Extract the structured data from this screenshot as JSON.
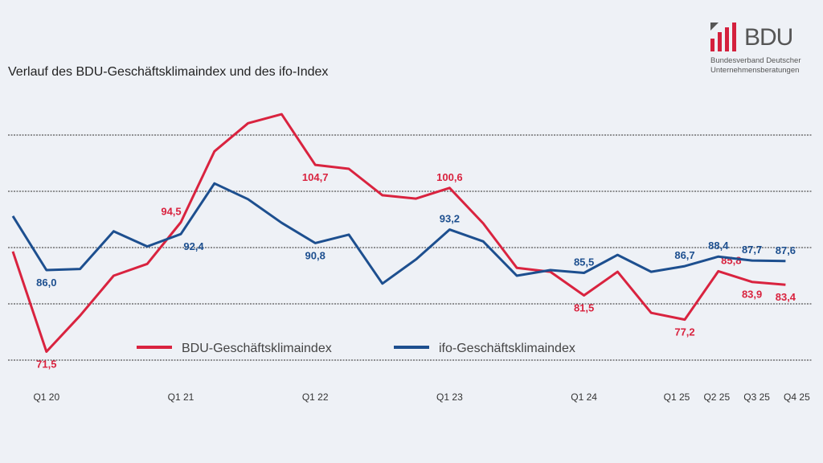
{
  "logo": {
    "text": "BDU",
    "line1": "Bundesverband Deutscher",
    "line2": "Unternehmensberatungen",
    "bar_color": "#d4203d"
  },
  "chart_data": {
    "type": "line",
    "title": "Verlauf des BDU-Geschäftsklimaindex und des ifo-Index",
    "ylim": [
      70,
      110
    ],
    "grid": true,
    "legend": "bottom-center",
    "x_ticks": [
      {
        "index": 1,
        "label": "Q1 20"
      },
      {
        "index": 5,
        "label": "Q1 21"
      },
      {
        "index": 9,
        "label": "Q1 22"
      },
      {
        "index": 13,
        "label": "Q1 23"
      },
      {
        "index": 17,
        "label": "Q1 24"
      },
      {
        "index": 20,
        "label": "Q1 25"
      },
      {
        "index": 21,
        "label": "Q2 25"
      },
      {
        "index": 22,
        "label": "Q3 25"
      },
      {
        "index": 23,
        "label": "Q4 25"
      }
    ],
    "series": [
      {
        "name": "BDU-Geschäftsklimaindex",
        "color": "#d9233f",
        "values": [
          89.3,
          71.5,
          77.9,
          85.0,
          87.1,
          94.5,
          107.1,
          112.1,
          113.7,
          104.7,
          104.0,
          99.3,
          98.7,
          100.6,
          94.3,
          86.4,
          85.7,
          81.5,
          85.7,
          78.4,
          77.2,
          85.8,
          83.9,
          83.4
        ],
        "labels": [
          {
            "index": 1,
            "text": "71,5",
            "pos": "below"
          },
          {
            "index": 5,
            "text": "94,5",
            "pos": "above-left"
          },
          {
            "index": 9,
            "text": "104,7",
            "pos": "below"
          },
          {
            "index": 13,
            "text": "100,6",
            "pos": "above"
          },
          {
            "index": 17,
            "text": "81,5",
            "pos": "below"
          },
          {
            "index": 20,
            "text": "77,2",
            "pos": "below"
          },
          {
            "index": 21,
            "text": "85,8",
            "pos": "above-right"
          },
          {
            "index": 22,
            "text": "83,9",
            "pos": "below"
          },
          {
            "index": 23,
            "text": "83,4",
            "pos": "below"
          }
        ]
      },
      {
        "name": "ifo-Geschäftsklimaindex",
        "color": "#1d4f8f",
        "values": [
          95.6,
          86.0,
          86.2,
          92.9,
          90.2,
          92.4,
          101.4,
          98.6,
          94.4,
          90.8,
          92.3,
          83.6,
          87.9,
          93.2,
          91.1,
          85.0,
          86.0,
          85.5,
          88.7,
          85.7,
          86.7,
          88.4,
          87.7,
          87.6
        ],
        "labels": [
          {
            "index": 1,
            "text": "86,0",
            "pos": "below"
          },
          {
            "index": 5,
            "text": "92,4",
            "pos": "below-right"
          },
          {
            "index": 9,
            "text": "90,8",
            "pos": "below"
          },
          {
            "index": 13,
            "text": "93,2",
            "pos": "above"
          },
          {
            "index": 17,
            "text": "85,5",
            "pos": "above"
          },
          {
            "index": 20,
            "text": "86,7",
            "pos": "above"
          },
          {
            "index": 21,
            "text": "88,4",
            "pos": "above"
          },
          {
            "index": 22,
            "text": "87,7",
            "pos": "above"
          },
          {
            "index": 23,
            "text": "87,6",
            "pos": "above"
          }
        ]
      }
    ]
  }
}
